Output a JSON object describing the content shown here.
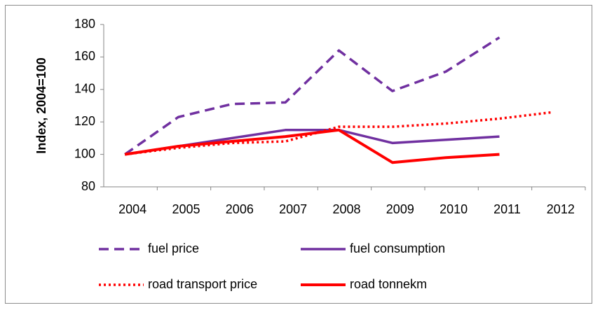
{
  "chart_data": {
    "type": "line",
    "y_label": "Index, 2004=100",
    "categories": [
      "2004",
      "2005",
      "2006",
      "2007",
      "2008",
      "2009",
      "2010",
      "2011",
      "2012"
    ],
    "ylim": [
      80,
      180
    ],
    "yticks": [
      80,
      100,
      120,
      140,
      160,
      180
    ],
    "series": [
      {
        "name": "fuel price",
        "color": "#7030a0",
        "dash": "dashed",
        "values": [
          100,
          123,
          131,
          132,
          164,
          139,
          151,
          172,
          null
        ]
      },
      {
        "name": "fuel consumption",
        "color": "#7030a0",
        "dash": "solid",
        "values": [
          100,
          105,
          110,
          115,
          115,
          107,
          109,
          111,
          null
        ]
      },
      {
        "name": "road transport price",
        "color": "#ff0000",
        "dash": "dotted",
        "values": [
          100,
          104,
          107,
          108,
          117,
          117,
          119,
          122,
          126
        ]
      },
      {
        "name": "road tonnekm",
        "color": "#ff0000",
        "dash": "solid",
        "values": [
          100,
          105,
          108,
          111,
          115,
          95,
          98,
          100,
          null
        ]
      }
    ]
  }
}
